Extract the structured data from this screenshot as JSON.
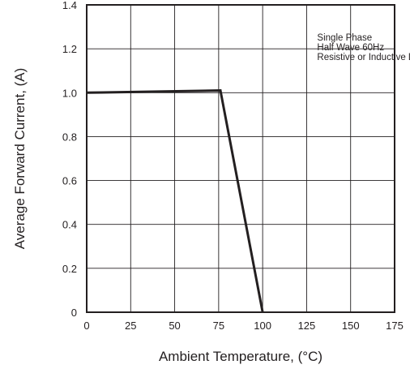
{
  "chart_data": {
    "type": "line",
    "title": "",
    "xlabel": "Ambient Temperature, (°C)",
    "ylabel": "Average Forward Current, (A)",
    "xlim": [
      0,
      175
    ],
    "ylim": [
      0,
      1.4
    ],
    "x_ticks": [
      0,
      25,
      50,
      75,
      100,
      125,
      150,
      175
    ],
    "x_tick_labels": [
      "0",
      "25",
      "50",
      "75",
      "100",
      "125",
      "150",
      "175"
    ],
    "y_ticks": [
      0,
      0.2,
      0.4,
      0.6,
      0.8,
      1.0,
      1.2,
      1.4
    ],
    "y_tick_labels": [
      "0",
      "0.2",
      "0.4",
      "0.6",
      "0.8",
      "1.0",
      "1.2",
      "1.4"
    ],
    "grid": true,
    "legend": "none",
    "series": [
      {
        "x": [
          0,
          76,
          100
        ],
        "y": [
          1.0,
          1.01,
          0
        ],
        "color": "#231f20"
      }
    ],
    "annotation": {
      "lines": [
        "Single Phase",
        "Half Wave 60Hz",
        "Resistive or Inductive Loae"
      ],
      "placement": "top-right"
    }
  }
}
